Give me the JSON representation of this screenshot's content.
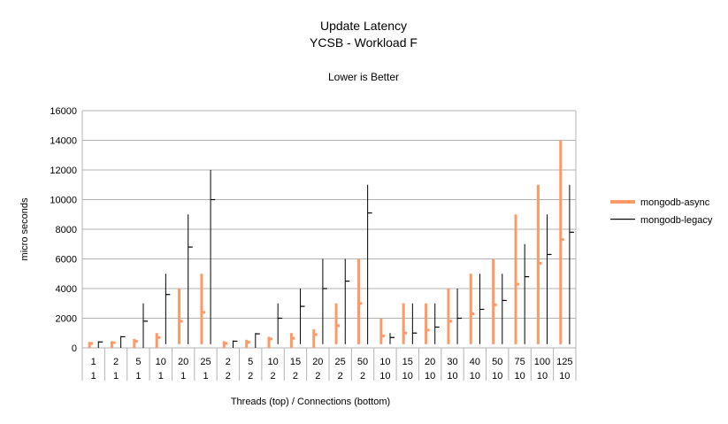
{
  "chart_data": {
    "type": "stock",
    "title": "Update Latency",
    "subtitle": "YCSB - Workload F",
    "note": "Lower is Better",
    "xlabel": "Threads (top) / Connections (bottom)",
    "ylabel": "micro seconds",
    "ylim": [
      0,
      16000
    ],
    "yticks": [
      0,
      2000,
      4000,
      6000,
      8000,
      10000,
      12000,
      14000,
      16000
    ],
    "grid": true,
    "legend_position": "right",
    "categories": [
      {
        "threads": "1",
        "connections": "1"
      },
      {
        "threads": "2",
        "connections": "1"
      },
      {
        "threads": "5",
        "connections": "1"
      },
      {
        "threads": "10",
        "connections": "1"
      },
      {
        "threads": "20",
        "connections": "1"
      },
      {
        "threads": "25",
        "connections": "1"
      },
      {
        "threads": "2",
        "connections": "2"
      },
      {
        "threads": "5",
        "connections": "2"
      },
      {
        "threads": "10",
        "connections": "2"
      },
      {
        "threads": "15",
        "connections": "2"
      },
      {
        "threads": "20",
        "connections": "2"
      },
      {
        "threads": "25",
        "connections": "2"
      },
      {
        "threads": "50",
        "connections": "2"
      },
      {
        "threads": "10",
        "connections": "10"
      },
      {
        "threads": "15",
        "connections": "10"
      },
      {
        "threads": "20",
        "connections": "10"
      },
      {
        "threads": "30",
        "connections": "10"
      },
      {
        "threads": "40",
        "connections": "10"
      },
      {
        "threads": "50",
        "connections": "10"
      },
      {
        "threads": "75",
        "connections": "10"
      },
      {
        "threads": "100",
        "connections": "10"
      },
      {
        "threads": "125",
        "connections": "10"
      }
    ],
    "series": [
      {
        "name": "mongodb-async",
        "color": "#ff9966",
        "low": [
          0,
          0,
          0,
          0,
          250,
          250,
          0,
          0,
          0,
          0,
          0,
          250,
          250,
          250,
          250,
          250,
          250,
          250,
          250,
          250,
          250,
          250
        ],
        "high": [
          400,
          450,
          600,
          1000,
          4000,
          5000,
          450,
          550,
          750,
          1000,
          1250,
          3000,
          6000,
          2000,
          3000,
          3000,
          4000,
          5000,
          6000,
          9000,
          11000,
          14000
        ],
        "mean": [
          300,
          350,
          450,
          700,
          1800,
          2400,
          300,
          380,
          600,
          650,
          900,
          1500,
          3000,
          800,
          1000,
          1200,
          1800,
          2300,
          2900,
          4300,
          5700,
          7300
        ]
      },
      {
        "name": "mongodb-legacy",
        "color": "#000000",
        "low": [
          0,
          0,
          0,
          250,
          250,
          250,
          0,
          0,
          250,
          250,
          250,
          250,
          250,
          250,
          250,
          250,
          250,
          250,
          250,
          250,
          250,
          250
        ],
        "high": [
          450,
          800,
          3000,
          5000,
          9000,
          12000,
          500,
          1000,
          3000,
          4000,
          6000,
          6000,
          11000,
          1000,
          3000,
          3000,
          4000,
          5000,
          5000,
          7000,
          9000,
          11000
        ],
        "mean": [
          400,
          750,
          1800,
          3600,
          6800,
          10000,
          450,
          950,
          2000,
          2800,
          4000,
          4500,
          9100,
          700,
          1000,
          1400,
          2000,
          2600,
          3200,
          4800,
          6300,
          7800
        ]
      }
    ]
  }
}
